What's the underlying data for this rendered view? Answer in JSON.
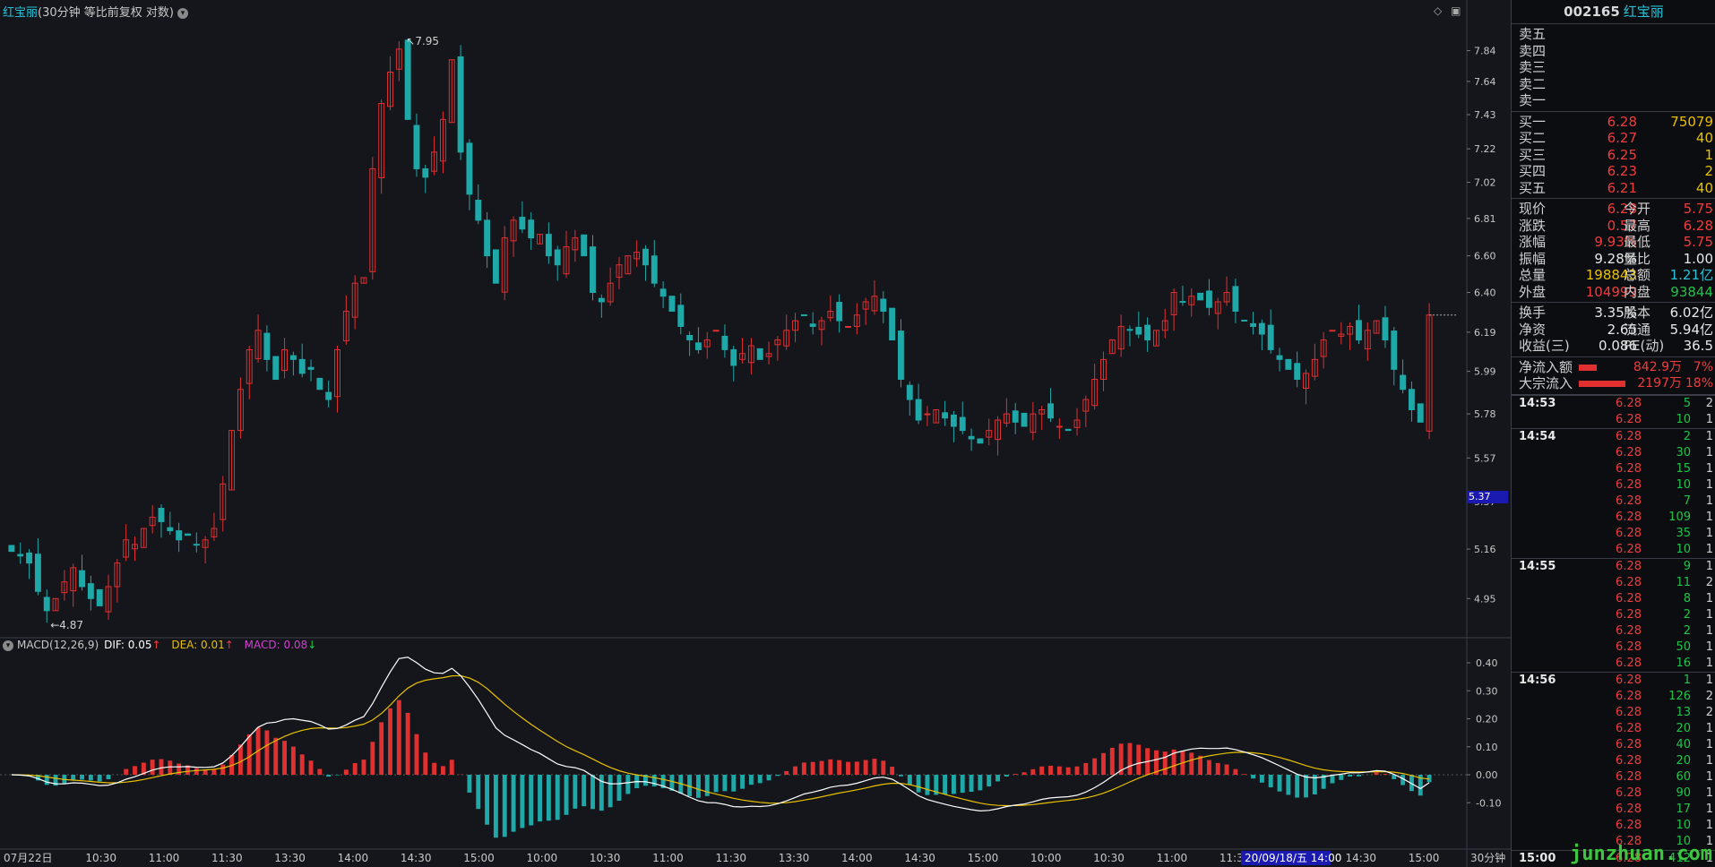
{
  "header": {
    "stock_name": "红宝丽",
    "params": "(30分钟 等比前复权 对数)",
    "dropdown_icon": "chevron-down-icon"
  },
  "price_axis": {
    "ticks": [
      "7.84",
      "7.64",
      "7.43",
      "7.22",
      "7.02",
      "6.81",
      "6.60",
      "6.40",
      "6.19",
      "5.99",
      "5.78",
      "5.57",
      "5.37",
      "5.16",
      "4.95"
    ],
    "highlight": "5.37"
  },
  "annotations": {
    "high": "7.95",
    "low": "4.87"
  },
  "macd": {
    "title": "MACD(12,26,9)",
    "dif_label": "DIF: 0.05",
    "dea_label": "DEA: 0.01",
    "macd_label": "MACD: 0.08",
    "ticks": [
      "0.40",
      "0.30",
      "0.20",
      "0.10",
      "0.00",
      "-0.10"
    ]
  },
  "time_axis": {
    "labels": [
      "07月22日",
      "10:30",
      "11:00",
      "11:30",
      "13:30",
      "14:00",
      "14:30",
      "15:00",
      "10:00",
      "10:30",
      "11:00",
      "11:30",
      "13:30",
      "14:00",
      "14:30",
      "15:00",
      "10:00",
      "10:30",
      "11:00",
      "11:30",
      "14:00",
      "14:30",
      "15:00"
    ],
    "cursor_label": "20/09/18/五 14:00",
    "period": "30分钟"
  },
  "chart_data": {
    "type": "candlestick",
    "period": "30分钟",
    "scale": "log",
    "ylim": [
      4.87,
      7.95
    ],
    "close": [
      5.15,
      5.13,
      5.1,
      4.98,
      4.9,
      4.95,
      5.02,
      5.08,
      5.0,
      4.95,
      4.92,
      5.0,
      5.1,
      5.2,
      5.18,
      5.25,
      5.3,
      5.28,
      5.24,
      5.2,
      5.22,
      5.18,
      5.2,
      5.25,
      5.45,
      5.7,
      5.9,
      6.1,
      6.2,
      6.05,
      5.95,
      6.1,
      6.05,
      5.98,
      6.0,
      5.9,
      5.85,
      6.1,
      6.3,
      6.45,
      6.48,
      7.1,
      7.5,
      7.7,
      7.85,
      7.4,
      7.1,
      7.05,
      7.2,
      7.4,
      7.78,
      7.2,
      6.95,
      6.8,
      6.6,
      6.45,
      6.7,
      6.8,
      6.75,
      6.7,
      6.72,
      6.6,
      6.55,
      6.65,
      6.7,
      6.6,
      6.4,
      6.35,
      6.45,
      6.55,
      6.6,
      6.62,
      6.55,
      6.45,
      6.38,
      6.3,
      6.22,
      6.15,
      6.1,
      6.15,
      6.2,
      6.1,
      6.02,
      6.08,
      6.12,
      6.05,
      6.08,
      6.15,
      6.2,
      6.25,
      6.28,
      6.22,
      6.25,
      6.3,
      6.25,
      6.22,
      6.28,
      6.35,
      6.38,
      6.3,
      6.15,
      5.95,
      5.85,
      5.75,
      5.78,
      5.8,
      5.76,
      5.72,
      5.7,
      5.66,
      5.64,
      5.7,
      5.75,
      5.78,
      5.74,
      5.72,
      5.78,
      5.8,
      5.76,
      5.72,
      5.7,
      5.75,
      5.85,
      5.95,
      6.05,
      6.15,
      6.22,
      6.2,
      6.18,
      6.15,
      6.2,
      6.25,
      6.4,
      6.35,
      6.38,
      6.36,
      6.32,
      6.35,
      6.4,
      6.3,
      6.25,
      6.22,
      6.18,
      6.1,
      6.05,
      6.0,
      5.95,
      5.98,
      6.05,
      6.15,
      6.2,
      6.18,
      6.22,
      6.15,
      6.2,
      6.25,
      6.15,
      6.0,
      5.9,
      5.8,
      5.74,
      6.28
    ],
    "macd_dif_range": [
      -0.12,
      0.44
    ]
  },
  "panel": {
    "code": "002165",
    "name": "红宝丽",
    "sells": [
      {
        "label": "卖五",
        "price": "",
        "vol": ""
      },
      {
        "label": "卖四",
        "price": "",
        "vol": ""
      },
      {
        "label": "卖三",
        "price": "",
        "vol": ""
      },
      {
        "label": "卖二",
        "price": "",
        "vol": ""
      },
      {
        "label": "卖一",
        "price": "",
        "vol": ""
      }
    ],
    "buys": [
      {
        "label": "买一",
        "price": "6.28",
        "vol": "75079"
      },
      {
        "label": "买二",
        "price": "6.27",
        "vol": "40"
      },
      {
        "label": "买三",
        "price": "6.25",
        "vol": "1"
      },
      {
        "label": "买四",
        "price": "6.23",
        "vol": "2"
      },
      {
        "label": "买五",
        "price": "6.21",
        "vol": "40"
      }
    ],
    "stats1": [
      {
        "l1": "现价",
        "v1": "6.28",
        "c1": "red",
        "l2": "今开",
        "v2": "5.75",
        "c2": "red"
      },
      {
        "l1": "涨跌",
        "v1": "0.57",
        "c1": "red",
        "l2": "最高",
        "v2": "6.28",
        "c2": "red"
      },
      {
        "l1": "涨幅",
        "v1": "9.93%",
        "c1": "red",
        "l2": "最低",
        "v2": "5.75",
        "c2": "red"
      },
      {
        "l1": "振幅",
        "v1": "9.28%",
        "c1": "wht",
        "l2": "量比",
        "v2": "1.00",
        "c2": "wht"
      },
      {
        "l1": "总量",
        "v1": "198843",
        "c1": "yel",
        "l2": "总额",
        "v2": "1.21亿",
        "c2": "cyn"
      },
      {
        "l1": "外盘",
        "v1": "104999",
        "c1": "red",
        "l2": "内盘",
        "v2": "93844",
        "c2": "grn"
      }
    ],
    "stats2": [
      {
        "l1": "换手",
        "v1": "3.35%",
        "l2": "股本",
        "v2": "6.02亿"
      },
      {
        "l1": "净资",
        "v1": "2.65",
        "l2": "流通",
        "v2": "5.94亿"
      },
      {
        "l1": "收益(三)",
        "v1": "0.086",
        "l2": "PE(动)",
        "v2": "36.5"
      }
    ],
    "flows": [
      {
        "label": "净流入额",
        "value": "842.9万",
        "pct": "7%",
        "bar": 20
      },
      {
        "label": "大宗流入",
        "value": "2197万",
        "pct": "18%",
        "bar": 52
      }
    ],
    "ticks": [
      {
        "time": "14:53",
        "price": "6.28",
        "vol": "5",
        "n": "2"
      },
      {
        "time": "",
        "price": "6.28",
        "vol": "10",
        "n": "1"
      },
      {
        "time": "14:54",
        "price": "6.28",
        "vol": "2",
        "n": "1"
      },
      {
        "time": "",
        "price": "6.28",
        "vol": "30",
        "n": "1"
      },
      {
        "time": "",
        "price": "6.28",
        "vol": "15",
        "n": "1"
      },
      {
        "time": "",
        "price": "6.28",
        "vol": "10",
        "n": "1"
      },
      {
        "time": "",
        "price": "6.28",
        "vol": "7",
        "n": "1"
      },
      {
        "time": "",
        "price": "6.28",
        "vol": "109",
        "n": "1"
      },
      {
        "time": "",
        "price": "6.28",
        "vol": "35",
        "n": "1"
      },
      {
        "time": "",
        "price": "6.28",
        "vol": "10",
        "n": "1"
      },
      {
        "time": "14:55",
        "price": "6.28",
        "vol": "9",
        "n": "1"
      },
      {
        "time": "",
        "price": "6.28",
        "vol": "11",
        "n": "2"
      },
      {
        "time": "",
        "price": "6.28",
        "vol": "8",
        "n": "1"
      },
      {
        "time": "",
        "price": "6.28",
        "vol": "2",
        "n": "1"
      },
      {
        "time": "",
        "price": "6.28",
        "vol": "2",
        "n": "1"
      },
      {
        "time": "",
        "price": "6.28",
        "vol": "50",
        "n": "1"
      },
      {
        "time": "",
        "price": "6.28",
        "vol": "16",
        "n": "1"
      },
      {
        "time": "14:56",
        "price": "6.28",
        "vol": "1",
        "n": "1"
      },
      {
        "time": "",
        "price": "6.28",
        "vol": "126",
        "n": "2"
      },
      {
        "time": "",
        "price": "6.28",
        "vol": "13",
        "n": "2"
      },
      {
        "time": "",
        "price": "6.28",
        "vol": "20",
        "n": "1"
      },
      {
        "time": "",
        "price": "6.28",
        "vol": "40",
        "n": "1"
      },
      {
        "time": "",
        "price": "6.28",
        "vol": "20",
        "n": "1"
      },
      {
        "time": "",
        "price": "6.28",
        "vol": "60",
        "n": "1"
      },
      {
        "time": "",
        "price": "6.28",
        "vol": "90",
        "n": "1"
      },
      {
        "time": "",
        "price": "6.28",
        "vol": "17",
        "n": "1"
      },
      {
        "time": "",
        "price": "6.28",
        "vol": "10",
        "n": "1"
      },
      {
        "time": "",
        "price": "6.28",
        "vol": "10",
        "n": "1"
      },
      {
        "time": "15:00",
        "price": "6.28",
        "vol": "412",
        "n": "1"
      }
    ],
    "watermark": "junzhuan.com"
  },
  "colors": {
    "up": "#e03030",
    "down": "#1ea8a8",
    "dif": "#ffffff",
    "dea": "#e8c000",
    "macd_up": "#e03030",
    "macd_dn": "#1ea8a8"
  }
}
